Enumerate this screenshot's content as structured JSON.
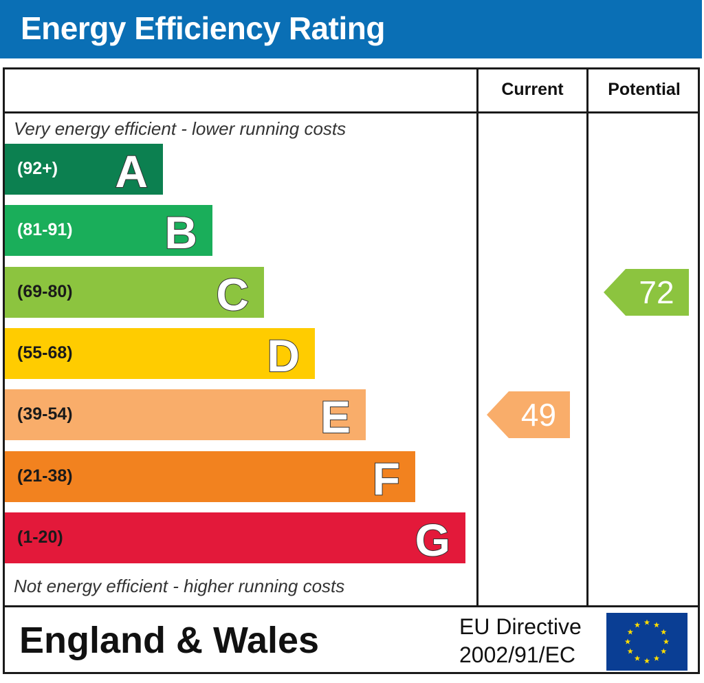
{
  "header": {
    "title": "Energy Efficiency Rating"
  },
  "columns": {
    "current": "Current",
    "potential": "Potential"
  },
  "notes": {
    "top": "Very energy efficient - lower running costs",
    "bottom": "Not energy efficient - higher running costs"
  },
  "chart_data": {
    "type": "bar",
    "title": "Energy Efficiency Rating",
    "categories": [
      "A",
      "B",
      "C",
      "D",
      "E",
      "F",
      "G"
    ],
    "bands": [
      {
        "letter": "A",
        "range": "(92+)",
        "color": "#0c8050",
        "text_color": "#ffffff"
      },
      {
        "letter": "B",
        "range": "(81-91)",
        "color": "#1aae5a",
        "text_color": "#ffffff"
      },
      {
        "letter": "C",
        "range": "(69-80)",
        "color": "#8cc43f",
        "text_color": "#1a1a1a"
      },
      {
        "letter": "D",
        "range": "(55-68)",
        "color": "#ffcc00",
        "text_color": "#1a1a1a"
      },
      {
        "letter": "E",
        "range": "(39-54)",
        "color": "#f9ad6a",
        "text_color": "#1a1a1a"
      },
      {
        "letter": "F",
        "range": "(21-38)",
        "color": "#f2821f",
        "text_color": "#1a1a1a"
      },
      {
        "letter": "G",
        "range": "(1-20)",
        "color": "#e3193a",
        "text_color": "#1a1a1a"
      }
    ],
    "series": [
      {
        "name": "Current",
        "value": 49,
        "band": "E",
        "color": "#f9ad6a"
      },
      {
        "name": "Potential",
        "value": 72,
        "band": "C",
        "color": "#8cc43f"
      }
    ]
  },
  "footer": {
    "region": "England & Wales",
    "directive_line1": "EU Directive",
    "directive_line2": "2002/91/EC"
  }
}
